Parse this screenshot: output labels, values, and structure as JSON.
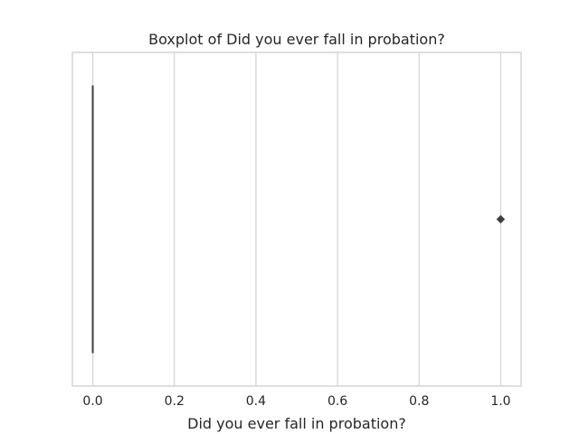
{
  "chart_data": {
    "type": "boxplot",
    "title": "Boxplot of Did you ever fall in probation?",
    "xlabel": "Did you ever fall in probation?",
    "ylabel": "",
    "orientation": "horizontal",
    "xlim": [
      -0.05,
      1.05
    ],
    "xticks": [
      0.0,
      0.2,
      0.4,
      0.6,
      0.8,
      1.0
    ],
    "xtick_labels": [
      "0.0",
      "0.2",
      "0.4",
      "0.6",
      "0.8",
      "1.0"
    ],
    "grid": true,
    "grid_axis": "x",
    "box": {
      "min": 0.0,
      "q1": 0.0,
      "median": 0.0,
      "q3": 0.0,
      "max": 0.0
    },
    "outliers": [
      1.0
    ],
    "colors": {
      "box_line": "#3f3f3f",
      "outlier": "#3f3f3f",
      "grid": "#d3d3d3",
      "frame": "#cccccc",
      "text": "#262626"
    }
  }
}
